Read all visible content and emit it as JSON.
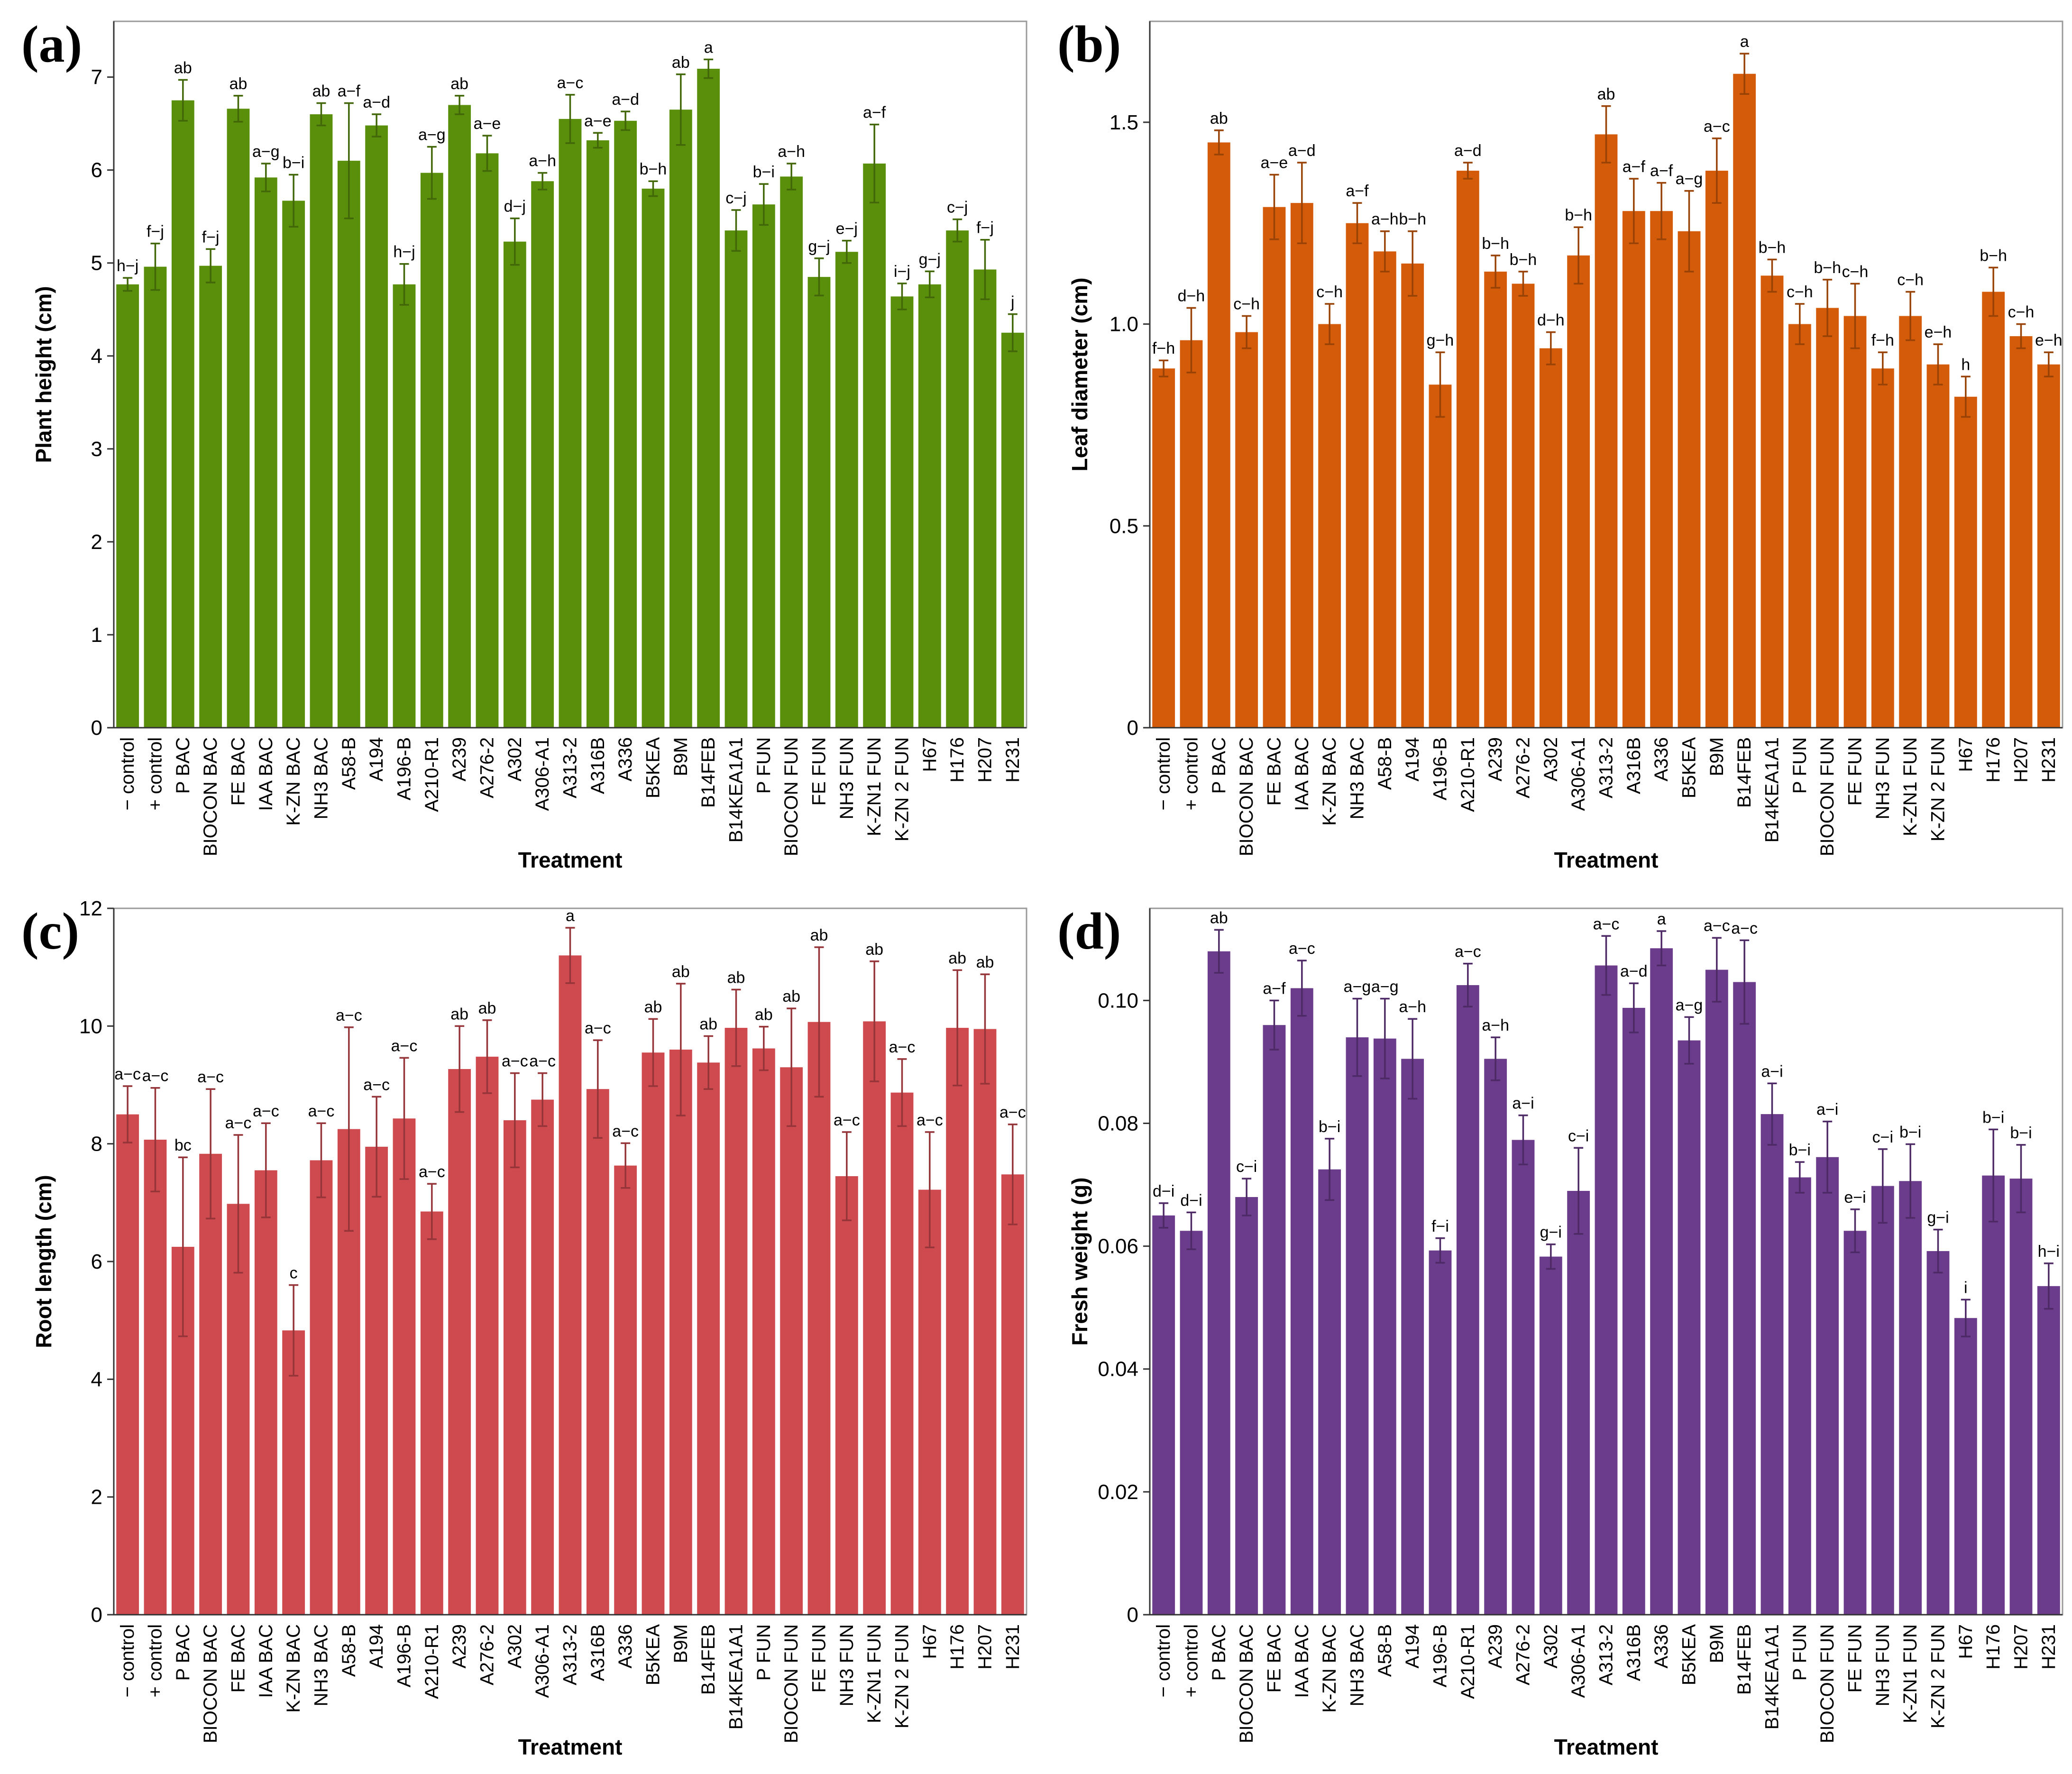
{
  "panels": [
    {
      "id": "a",
      "panel_label": "(a)",
      "color": "#5a8f0b",
      "chart_data": {
        "type": "bar",
        "title": "",
        "xlabel": "Treatment",
        "ylabel": "Plant height (cm)",
        "ylim": [
          0,
          7.6
        ],
        "yticks": [
          "0",
          "1",
          "2",
          "3",
          "4",
          "5",
          "6",
          "7"
        ],
        "ytick_values": [
          0,
          1,
          2,
          3,
          4,
          5,
          6,
          7
        ],
        "categories": [
          "− control",
          "+ control",
          "P BAC",
          "BIOCON BAC",
          "FE BAC",
          "IAA BAC",
          "K-ZN BAC",
          "NH3 BAC",
          "A58-B",
          "A194",
          "A196-B",
          "A210-R1",
          "A239",
          "A276-2",
          "A302",
          "A306-A1",
          "A313-2",
          "A316B",
          "A336",
          "B5KEA",
          "B9M",
          "B14FEB",
          "B14KEA1A1",
          "P FUN",
          "BIOCON FUN",
          "FE FUN",
          "NH3 FUN",
          "K-ZN1 FUN",
          "K-ZN 2 FUN",
          "H67",
          "H176",
          "H207",
          "H231"
        ],
        "values": [
          4.77,
          4.96,
          6.75,
          4.97,
          6.66,
          5.92,
          5.67,
          6.6,
          6.1,
          6.48,
          4.77,
          5.97,
          6.7,
          6.18,
          5.23,
          5.88,
          6.55,
          6.32,
          6.53,
          5.8,
          6.65,
          7.09,
          5.35,
          5.63,
          5.93,
          4.85,
          5.12,
          6.07,
          4.64,
          4.77,
          5.35,
          4.93,
          4.25
        ],
        "errors": [
          0.07,
          0.25,
          0.22,
          0.18,
          0.14,
          0.15,
          0.28,
          0.12,
          0.62,
          0.12,
          0.22,
          0.28,
          0.1,
          0.19,
          0.25,
          0.09,
          0.26,
          0.08,
          0.1,
          0.08,
          0.38,
          0.1,
          0.22,
          0.22,
          0.14,
          0.2,
          0.12,
          0.42,
          0.14,
          0.14,
          0.12,
          0.32,
          0.2
        ],
        "letters": [
          "h−j",
          "f−j",
          "ab",
          "f−j",
          "ab",
          "a−g",
          "b−i",
          "ab",
          "a−f",
          "a−d",
          "h−j",
          "a−g",
          "ab",
          "a−e",
          "d−j",
          "a−h",
          "a−c",
          "a−e",
          "a−d",
          "b−h",
          "ab",
          "a",
          "c−j",
          "b−i",
          "a−h",
          "g−j",
          "e−j",
          "a−f",
          "i−j",
          "g−j",
          "c−j",
          "f−j",
          "j"
        ]
      }
    },
    {
      "id": "b",
      "panel_label": "(b)",
      "color": "#d35b09",
      "chart_data": {
        "type": "bar",
        "title": "",
        "xlabel": "Treatment",
        "ylabel": "Leaf diameter (cm)",
        "ylim": [
          0,
          1.75
        ],
        "yticks": [
          "0",
          "0.5",
          "1.0",
          "1.5"
        ],
        "ytick_values": [
          0,
          0.5,
          1.0,
          1.5
        ],
        "categories": [
          "− control",
          "+ control",
          "P BAC",
          "BIOCON BAC",
          "FE BAC",
          "IAA BAC",
          "K-ZN BAC",
          "NH3 BAC",
          "A58-B",
          "A194",
          "A196-B",
          "A210-R1",
          "A239",
          "A276-2",
          "A302",
          "A306-A1",
          "A313-2",
          "A316B",
          "A336",
          "B5KEA",
          "B9M",
          "B14FEB",
          "B14KEA1A1",
          "P FUN",
          "BIOCON FUN",
          "FE FUN",
          "NH3 FUN",
          "K-ZN1 FUN",
          "K-ZN 2 FUN",
          "H67",
          "H176",
          "H207",
          "H231"
        ],
        "values": [
          0.89,
          0.96,
          1.45,
          0.98,
          1.29,
          1.3,
          1.0,
          1.25,
          1.18,
          1.15,
          0.85,
          1.38,
          1.13,
          1.1,
          0.94,
          1.17,
          1.47,
          1.28,
          1.28,
          1.23,
          1.38,
          1.62,
          1.12,
          1.0,
          1.04,
          1.02,
          0.89,
          1.02,
          0.9,
          0.82,
          1.08,
          0.97,
          0.9
        ],
        "errors": [
          0.02,
          0.08,
          0.03,
          0.04,
          0.08,
          0.1,
          0.05,
          0.05,
          0.05,
          0.08,
          0.08,
          0.02,
          0.04,
          0.03,
          0.04,
          0.07,
          0.07,
          0.08,
          0.07,
          0.1,
          0.08,
          0.05,
          0.04,
          0.05,
          0.07,
          0.08,
          0.04,
          0.06,
          0.05,
          0.05,
          0.06,
          0.03,
          0.03
        ],
        "letters": [
          "f−h",
          "d−h",
          "ab",
          "c−h",
          "a−e",
          "a−d",
          "c−h",
          "a−f",
          "a−h",
          "b−h",
          "g−h",
          "a−d",
          "b−h",
          "b−h",
          "d−h",
          "b−h",
          "ab",
          "a−f",
          "a−f",
          "a−g",
          "a−c",
          "a",
          "b−h",
          "c−h",
          "b−h",
          "c−h",
          "f−h",
          "c−h",
          "e−h",
          "h",
          "b−h",
          "c−h",
          "e−h"
        ]
      }
    },
    {
      "id": "c",
      "panel_label": "(c)",
      "color": "#cf4a4f",
      "chart_data": {
        "type": "bar",
        "title": "",
        "xlabel": "Treatment",
        "ylabel": "Root length (cm)",
        "ylim": [
          0,
          12
        ],
        "yticks": [
          "0",
          "2",
          "4",
          "6",
          "8",
          "10",
          "12"
        ],
        "ytick_values": [
          0,
          2,
          4,
          6,
          8,
          10,
          12
        ],
        "categories": [
          "− control",
          "+ control",
          "P BAC",
          "BIOCON BAC",
          "FE BAC",
          "IAA BAC",
          "K-ZN BAC",
          "NH3 BAC",
          "A58-B",
          "A194",
          "A196-B",
          "A210-R1",
          "A239",
          "A276-2",
          "A302",
          "A306-A1",
          "A313-2",
          "A316B",
          "A336",
          "B5KEA",
          "B9M",
          "B14FEB",
          "B14KEA1A1",
          "P FUN",
          "BIOCON FUN",
          "FE FUN",
          "NH3 FUN",
          "K-ZN1 FUN",
          "K-ZN 2 FUN",
          "H67",
          "H176",
          "H207",
          "H231"
        ],
        "values": [
          8.5,
          8.07,
          6.25,
          7.83,
          6.98,
          7.55,
          4.83,
          7.72,
          8.25,
          7.95,
          8.43,
          6.85,
          9.27,
          9.48,
          8.4,
          8.75,
          11.2,
          8.93,
          7.63,
          9.55,
          9.6,
          9.38,
          9.97,
          9.62,
          9.3,
          10.07,
          7.45,
          10.08,
          8.87,
          7.22,
          9.97,
          9.95,
          7.48
        ],
        "errors": [
          0.48,
          0.88,
          1.52,
          1.1,
          1.17,
          0.8,
          0.77,
          0.63,
          1.73,
          0.85,
          1.03,
          0.47,
          0.73,
          0.62,
          0.8,
          0.45,
          0.47,
          0.83,
          0.38,
          0.57,
          1.12,
          0.45,
          0.65,
          0.37,
          1.0,
          1.27,
          0.75,
          1.02,
          0.57,
          0.98,
          0.98,
          0.93,
          0.85
        ],
        "letters": [
          "a−c",
          "a−c",
          "bc",
          "a−c",
          "a−c",
          "a−c",
          "c",
          "a−c",
          "a−c",
          "a−c",
          "a−c",
          "a−c",
          "ab",
          "ab",
          "a−c",
          "a−c",
          "a",
          "a−c",
          "a−c",
          "ab",
          "ab",
          "ab",
          "ab",
          "ab",
          "ab",
          "ab",
          "a−c",
          "ab",
          "a−c",
          "a−c",
          "ab",
          "ab",
          "a−c"
        ]
      }
    },
    {
      "id": "d",
      "panel_label": "(d)",
      "color": "#6b3b8c",
      "chart_data": {
        "type": "bar",
        "title": "",
        "xlabel": "Treatment",
        "ylabel": "Fresh weight (g)",
        "ylim": [
          0,
          0.115
        ],
        "yticks": [
          "0",
          "0.02",
          "0.04",
          "0.06",
          "0.08",
          "0.10"
        ],
        "ytick_values": [
          0,
          0.02,
          0.04,
          0.06,
          0.08,
          0.1
        ],
        "categories": [
          "− control",
          "+ control",
          "P BAC",
          "BIOCON BAC",
          "FE BAC",
          "IAA BAC",
          "K-ZN BAC",
          "NH3 BAC",
          "A58-B",
          "A194",
          "A196-B",
          "A210-R1",
          "A239",
          "A276-2",
          "A302",
          "A306-A1",
          "A313-2",
          "A316B",
          "A336",
          "B5KEA",
          "B9M",
          "B14FEB",
          "B14KEA1A1",
          "P FUN",
          "BIOCON FUN",
          "FE FUN",
          "NH3 FUN",
          "K-ZN1 FUN",
          "K-ZN 2 FUN",
          "H67",
          "H176",
          "H207",
          "H231"
        ],
        "values": [
          0.065,
          0.0625,
          0.108,
          0.068,
          0.096,
          0.102,
          0.0725,
          0.094,
          0.0938,
          0.0905,
          0.0593,
          0.1025,
          0.0905,
          0.0773,
          0.0583,
          0.069,
          0.1057,
          0.0988,
          0.1085,
          0.0935,
          0.105,
          0.103,
          0.0815,
          0.0712,
          0.0745,
          0.0625,
          0.0698,
          0.0706,
          0.0592,
          0.0483,
          0.0715,
          0.071,
          0.0535
        ],
        "errors": [
          0.002,
          0.003,
          0.0035,
          0.003,
          0.004,
          0.0045,
          0.005,
          0.0063,
          0.0065,
          0.0065,
          0.002,
          0.0035,
          0.0035,
          0.004,
          0.002,
          0.007,
          0.0048,
          0.004,
          0.0028,
          0.0038,
          0.0052,
          0.0068,
          0.005,
          0.0025,
          0.0058,
          0.0035,
          0.006,
          0.006,
          0.0035,
          0.003,
          0.0075,
          0.0055,
          0.0037
        ],
        "letters": [
          "d−i",
          "d−i",
          "ab",
          "c−i",
          "a−f",
          "a−c",
          "b−i",
          "a−g",
          "a−g",
          "a−h",
          "f−i",
          "a−c",
          "a−h",
          "a−i",
          "g−i",
          "c−i",
          "a−c",
          "a−d",
          "a",
          "a−g",
          "a−c",
          "a−c",
          "a−i",
          "b−i",
          "a−i",
          "e−i",
          "c−i",
          "b−i",
          "g−i",
          "i",
          "b−i",
          "b−i",
          "h−i"
        ]
      }
    }
  ]
}
